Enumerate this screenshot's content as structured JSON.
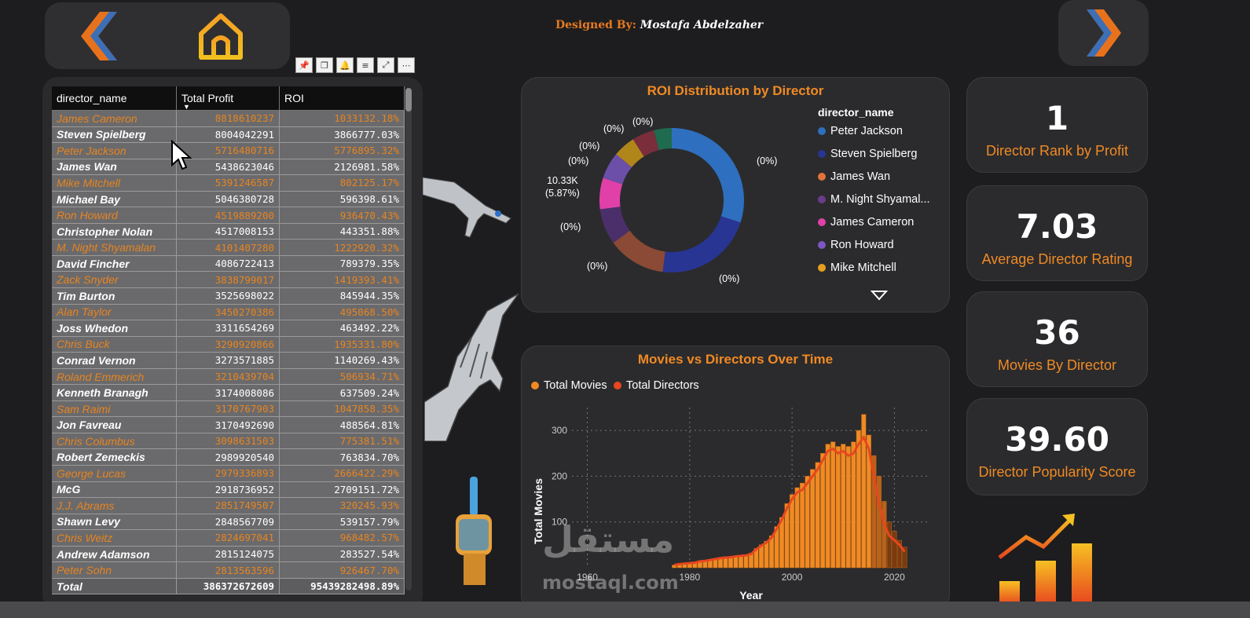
{
  "header": {
    "designed_label": "Designed By:",
    "designed_name": "Mostafa Abdelzaher"
  },
  "nav": {
    "back": "back-arrow-icon",
    "home": "home-icon",
    "next": "forward-arrow-icon"
  },
  "colors": {
    "accent": "#f08a24",
    "bg": "#1d1d1f",
    "panel": "#2b2b2d"
  },
  "table": {
    "columns": [
      "director_name",
      "Total Profit",
      "ROI"
    ],
    "rows": [
      [
        "James Cameron",
        "8818610237",
        "1033132.18%"
      ],
      [
        "Steven Spielberg",
        "8004042291",
        "3866777.03%"
      ],
      [
        "Peter Jackson",
        "5716480716",
        "5776895.32%"
      ],
      [
        "James Wan",
        "5438623046",
        "2126981.58%"
      ],
      [
        "Mike Mitchell",
        "5391246587",
        "802125.17%"
      ],
      [
        "Michael Bay",
        "5046380728",
        "596398.61%"
      ],
      [
        "Ron Howard",
        "4519889200",
        "936470.43%"
      ],
      [
        "Christopher Nolan",
        "4517008153",
        "443351.88%"
      ],
      [
        "M. Night Shyamalan",
        "4101407280",
        "1222920.32%"
      ],
      [
        "David Fincher",
        "4086722413",
        "789379.35%"
      ],
      [
        "Zack Snyder",
        "3838799017",
        "1419393.41%"
      ],
      [
        "Tim Burton",
        "3525698022",
        "845944.35%"
      ],
      [
        "Alan Taylor",
        "3450270386",
        "495068.50%"
      ],
      [
        "Joss Whedon",
        "3311654269",
        "463492.22%"
      ],
      [
        "Chris Buck",
        "3290920866",
        "1935331.80%"
      ],
      [
        "Conrad Vernon",
        "3273571885",
        "1140269.43%"
      ],
      [
        "Roland Emmerich",
        "3210439704",
        "506934.71%"
      ],
      [
        "Kenneth Branagh",
        "3174008086",
        "637509.24%"
      ],
      [
        "Sam Raimi",
        "3170767903",
        "1047858.35%"
      ],
      [
        "Jon Favreau",
        "3170492690",
        "488564.81%"
      ],
      [
        "Chris Columbus",
        "3098631503",
        "775381.51%"
      ],
      [
        "Robert Zemeckis",
        "2989920540",
        "763834.70%"
      ],
      [
        "George Lucas",
        "2979336893",
        "2666422.29%"
      ],
      [
        "McG",
        "2918736952",
        "2709151.72%"
      ],
      [
        "J.J. Abrams",
        "2851749507",
        "320245.93%"
      ],
      [
        "Shawn Levy",
        "2848567709",
        "539157.79%"
      ],
      [
        "Chris Weitz",
        "2824697041",
        "968482.57%"
      ],
      [
        "Andrew Adamson",
        "2815124075",
        "283527.54%"
      ],
      [
        "Peter Sohn",
        "2813563596",
        "926467.70%"
      ]
    ],
    "total": [
      "Total",
      "386372672609",
      "95439282498.89%"
    ]
  },
  "donut": {
    "title": "ROI Distribution by Director",
    "legend_title": "director_name",
    "legend": [
      {
        "name": "Peter Jackson",
        "color": "#2f6fbf"
      },
      {
        "name": "Steven Spielberg",
        "color": "#283593"
      },
      {
        "name": "James Wan",
        "color": "#e0733a"
      },
      {
        "name": "M. Night Shyamal...",
        "color": "#6a3d8a"
      },
      {
        "name": "James Cameron",
        "color": "#e040a8"
      },
      {
        "name": "Ron Howard",
        "color": "#7e57c2"
      },
      {
        "name": "Mike Mitchell",
        "color": "#e6a020"
      }
    ],
    "labels": {
      "right": "(0%)",
      "top1": "(0%)",
      "top2": "(0%)",
      "left1": "(0%)",
      "left2": "(0%)",
      "value_line1": "10.33K",
      "value_line2": "(5.87%)",
      "left3": "(0%)",
      "bottom1": "(0%)",
      "bottom2": "(0%)"
    }
  },
  "kpis": [
    {
      "value": "1",
      "label": "Director Rank by Profit"
    },
    {
      "value": "7.03",
      "label": "Average Director Rating"
    },
    {
      "value": "36",
      "label": "Movies By Director"
    },
    {
      "value": "39.60",
      "label": "Director Popularity Score"
    }
  ],
  "chart_data": {
    "type": "bar",
    "title": "Movies vs Directors Over Time",
    "xlabel": "Year",
    "ylabel": "Total Movies",
    "series": [
      {
        "name": "Total Movies",
        "color": "#f08a24"
      },
      {
        "name": "Total Directors",
        "color": "#e8461f"
      }
    ],
    "x_ticks": [
      "1960",
      "1980",
      "2000",
      "2020"
    ],
    "y_ticks": [
      "100",
      "200",
      "300"
    ],
    "ylim": [
      0,
      350
    ],
    "xlim": [
      1957,
      2027
    ],
    "x": [
      1977,
      1978,
      1979,
      1980,
      1981,
      1982,
      1983,
      1984,
      1985,
      1986,
      1987,
      1988,
      1989,
      1990,
      1991,
      1992,
      1993,
      1994,
      1995,
      1996,
      1997,
      1998,
      1999,
      2000,
      2001,
      2002,
      2003,
      2004,
      2005,
      2006,
      2007,
      2008,
      2009,
      2010,
      2011,
      2012,
      2013,
      2014,
      2015,
      2016,
      2017,
      2018,
      2019,
      2020,
      2021,
      2022
    ],
    "movies": [
      6,
      8,
      9,
      10,
      12,
      15,
      16,
      18,
      20,
      22,
      24,
      24,
      26,
      27,
      28,
      32,
      42,
      50,
      58,
      70,
      90,
      110,
      140,
      160,
      175,
      185,
      200,
      215,
      230,
      250,
      270,
      275,
      265,
      270,
      265,
      275,
      300,
      335,
      290,
      245,
      200,
      145,
      100,
      80,
      60,
      45
    ],
    "directors": [
      6,
      8,
      9,
      10,
      11,
      14,
      15,
      17,
      19,
      21,
      22,
      23,
      25,
      26,
      27,
      30,
      40,
      48,
      55,
      66,
      85,
      105,
      130,
      150,
      165,
      170,
      185,
      200,
      215,
      235,
      255,
      260,
      250,
      255,
      245,
      250,
      270,
      285,
      260,
      200,
      140,
      95,
      70,
      60,
      50,
      35
    ]
  },
  "watermark": {
    "arabic": "مستقل",
    "latin": "mostaql.com"
  }
}
